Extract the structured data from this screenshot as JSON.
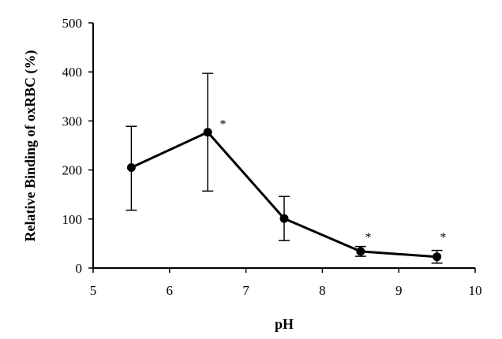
{
  "chart_data": {
    "type": "line",
    "title": "",
    "xlabel": "pH",
    "ylabel": "Relative Binding of oxRBC (%)",
    "xlim": [
      5,
      10
    ],
    "ylim": [
      0,
      500
    ],
    "x_ticks": [
      "5",
      "6",
      "7",
      "8",
      "9",
      "10"
    ],
    "y_ticks": [
      "0",
      "100",
      "200",
      "300",
      "400",
      "500"
    ],
    "grid": false,
    "legend": "none",
    "series": [
      {
        "x": [
          5.5,
          6.5,
          7.5,
          8.5,
          9.5
        ],
        "y": [
          205,
          277,
          101,
          34,
          23
        ],
        "error_low": [
          118,
          157,
          56,
          24,
          10
        ],
        "error_high": [
          289,
          397,
          146,
          44,
          36
        ],
        "marker": "filled-circle",
        "color": "#000000"
      }
    ],
    "annotations": [
      {
        "text": "*",
        "x": 6.7,
        "y": 285
      },
      {
        "text": "*",
        "x": 8.6,
        "y": 55
      },
      {
        "text": "*",
        "x": 9.58,
        "y": 55
      }
    ]
  }
}
